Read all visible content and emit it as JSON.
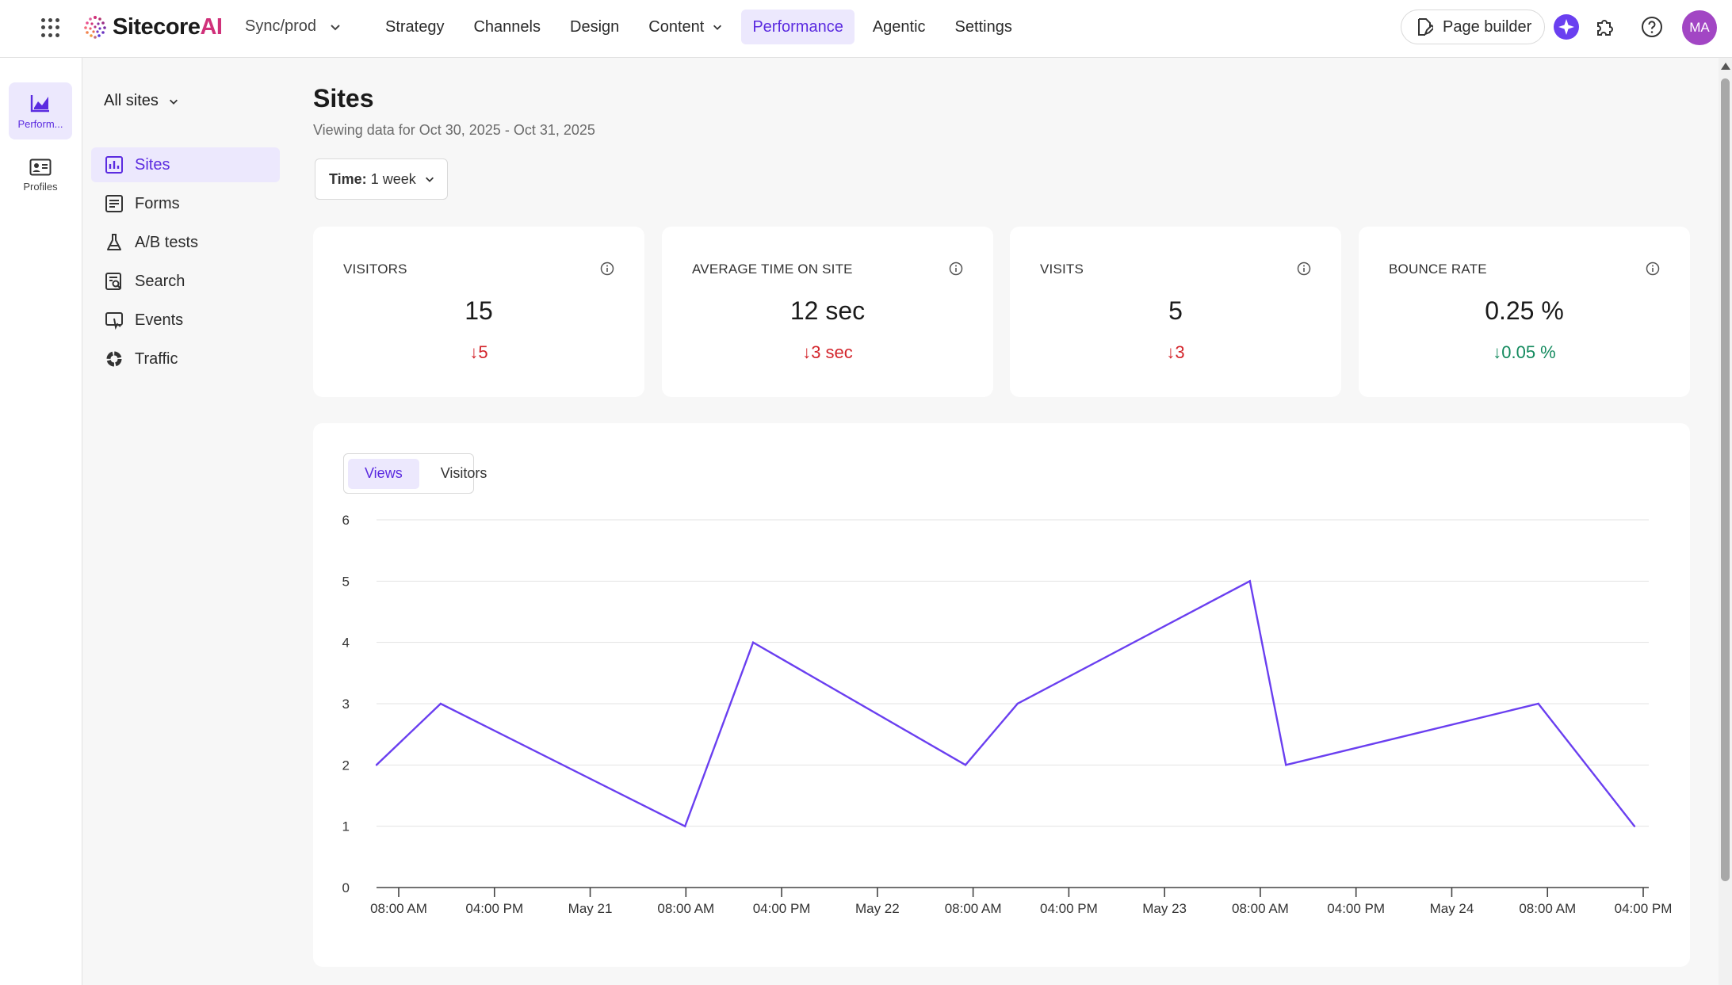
{
  "app": {
    "logo_main": "Sitecore",
    "logo_ai": "AI",
    "environment": "Sync/prod",
    "nav": [
      {
        "label": "Strategy"
      },
      {
        "label": "Channels"
      },
      {
        "label": "Design"
      },
      {
        "label": "Content"
      },
      {
        "label": "Performance"
      },
      {
        "label": "Agentic"
      },
      {
        "label": "Settings"
      }
    ],
    "page_builder_label": "Page builder",
    "user_initials": "MA",
    "accent_color": "#5b2be0",
    "avatar_color": "#a246c4"
  },
  "rail": [
    {
      "label": "Perform...",
      "icon": "performance-chart-icon"
    },
    {
      "label": "Profiles",
      "icon": "profile-card-icon"
    }
  ],
  "sidebar": {
    "site_selector": "All sites",
    "items": [
      {
        "label": "Sites",
        "icon": "bar-chart-icon"
      },
      {
        "label": "Forms",
        "icon": "form-icon"
      },
      {
        "label": "A/B tests",
        "icon": "flask-icon"
      },
      {
        "label": "Search",
        "icon": "search-document-icon"
      },
      {
        "label": "Events",
        "icon": "events-icon"
      },
      {
        "label": "Traffic",
        "icon": "traffic-donut-icon"
      }
    ]
  },
  "main": {
    "title": "Sites",
    "subtitle": "Viewing data for Oct 30, 2025 - Oct 31, 2025",
    "time_filter_label": "Time:",
    "time_filter_value": "1 week",
    "metrics": [
      {
        "title": "VISITORS",
        "value": "15",
        "delta": "5",
        "trend": "down",
        "color": "#d3242b"
      },
      {
        "title": "AVERAGE TIME ON SITE",
        "value": "12 sec",
        "delta": "3 sec",
        "trend": "down",
        "color": "#d3242b"
      },
      {
        "title": "VISITS",
        "value": "5",
        "delta": "3",
        "trend": "down",
        "color": "#d3242b"
      },
      {
        "title": "BOUNCE RATE",
        "value": "0.25 %",
        "delta": "0.05 %",
        "trend": "down",
        "color": "#138a5e"
      }
    ],
    "chart_tabs": [
      {
        "label": "Views"
      },
      {
        "label": "Visitors"
      }
    ]
  },
  "chart_data": {
    "type": "line",
    "ylim": [
      0,
      6
    ],
    "y_ticks": [
      "0",
      "1",
      "2",
      "3",
      "4",
      "5",
      "6"
    ],
    "x_ticks": [
      "08:00 AM",
      "04:00 PM",
      "May 21",
      "08:00 AM",
      "04:00 PM",
      "May 22",
      "08:00 AM",
      "04:00 PM",
      "May 23",
      "08:00 AM",
      "04:00 PM",
      "May 24",
      "08:00 AM",
      "04:00 PM"
    ],
    "grid": true,
    "line_color": "#6a3ff0",
    "series": [
      {
        "points": [
          {
            "t": 0,
            "y": 2
          },
          {
            "t": 8,
            "y": 3
          },
          {
            "t": 38.5,
            "y": 1
          },
          {
            "t": 47,
            "y": 4
          },
          {
            "t": 73.5,
            "y": 2
          },
          {
            "t": 80,
            "y": 3
          },
          {
            "t": 109,
            "y": 5
          },
          {
            "t": 113.5,
            "y": 2
          },
          {
            "t": 145,
            "y": 3
          },
          {
            "t": 157,
            "y": 1
          }
        ]
      }
    ]
  }
}
